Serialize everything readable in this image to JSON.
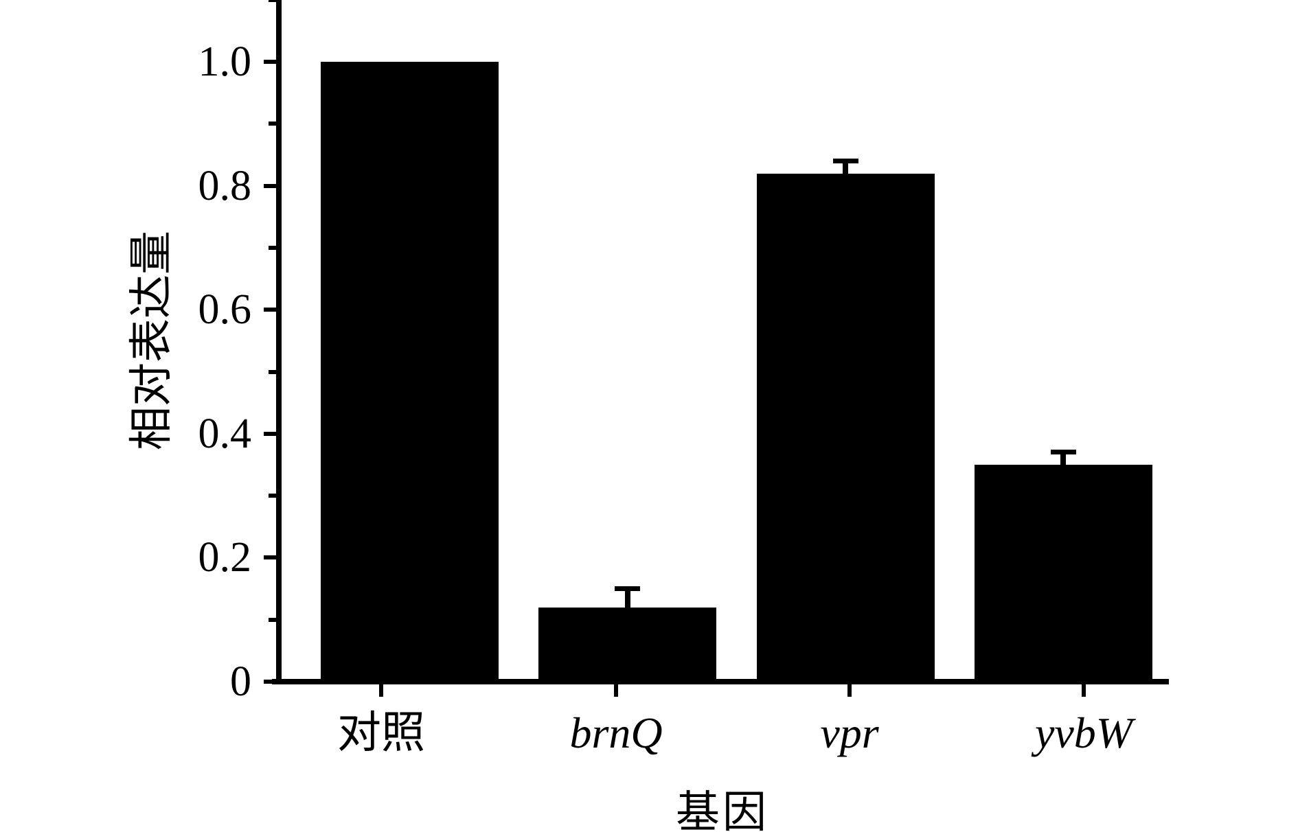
{
  "chart_data": {
    "type": "bar",
    "title": "",
    "xlabel": "基因",
    "ylabel": "相对表达量",
    "categories": [
      {
        "label": "对照",
        "italic": false
      },
      {
        "label": "brnQ",
        "italic": true
      },
      {
        "label": "vpr",
        "italic": true
      },
      {
        "label": "yvbW",
        "italic": true
      }
    ],
    "values": [
      1.0,
      0.12,
      0.82,
      0.35
    ],
    "errors": [
      0,
      0.03,
      0.02,
      0.02
    ],
    "ylim": [
      0,
      1.1
    ],
    "yticks": [
      {
        "value": 0,
        "label": "0"
      },
      {
        "value": 0.2,
        "label": "0.2"
      },
      {
        "value": 0.4,
        "label": "0.4"
      },
      {
        "value": 0.6,
        "label": "0.6"
      },
      {
        "value": 0.8,
        "label": "0.8"
      },
      {
        "value": 1.0,
        "label": "1.0"
      }
    ],
    "yticks_minor": [
      0.1,
      0.3,
      0.5,
      0.7,
      0.9,
      1.1
    ],
    "bar_color": "#000000",
    "background": "#ffffff",
    "grid": false,
    "legend": null
  }
}
